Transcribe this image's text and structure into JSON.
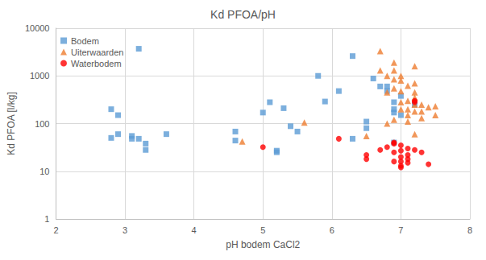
{
  "chart_data": {
    "type": "scatter",
    "title": "Kd PFOA/pH",
    "x_label": "pH bodem CaCl2",
    "y_label": "Kd PFOA [l/kg]",
    "xlim": [
      2,
      8
    ],
    "xticks": [
      2,
      3,
      4,
      5,
      6,
      7,
      8
    ],
    "ylim": [
      1,
      10000
    ],
    "yticks": [
      1,
      10,
      100,
      1000,
      10000
    ],
    "log": "y",
    "grid": true,
    "legend": "upper left",
    "series": [
      {
        "name": "Bodem",
        "color": "#5b9bd5",
        "marker": "square",
        "x": [
          2.8,
          2.8,
          2.9,
          2.9,
          3.1,
          3.1,
          3.2,
          3.2,
          3.3,
          3.3,
          3.6,
          4.6,
          4.6,
          5.0,
          5.1,
          5.2,
          5.2,
          5.3,
          5.4,
          5.5,
          5.8,
          5.9,
          6.1,
          6.3,
          6.3,
          6.5,
          6.5,
          6.6,
          6.7,
          6.8,
          6.8,
          6.9,
          6.9,
          6.9,
          7.0,
          7.0,
          6.9,
          7.2
        ],
        "values": [
          200,
          50,
          150,
          60,
          55,
          48,
          3700,
          48,
          38,
          28,
          60,
          68,
          44,
          170,
          280,
          27,
          25,
          210,
          88,
          68,
          1000,
          290,
          480,
          2600,
          48,
          110,
          80,
          880,
          600,
          600,
          480,
          280,
          200,
          170,
          380,
          150,
          40,
          250
        ]
      },
      {
        "name": "Uiterwaarden",
        "color": "#ed7d31",
        "marker": "triangle",
        "x": [
          4.7,
          5.6,
          6.5,
          6.7,
          6.7,
          6.8,
          6.8,
          6.8,
          6.9,
          6.9,
          6.9,
          6.9,
          6.9,
          7.0,
          7.0,
          7.0,
          7.0,
          7.0,
          7.1,
          7.1,
          7.1,
          7.1,
          7.2,
          7.2,
          7.2,
          7.2,
          7.2,
          7.2,
          7.2,
          7.3,
          7.3,
          7.3,
          7.4,
          7.5,
          7.5,
          7.1
        ],
        "values": [
          42,
          105,
          55,
          3300,
          1300,
          1000,
          450,
          100,
          1900,
          1300,
          850,
          550,
          120,
          1000,
          800,
          480,
          280,
          200,
          620,
          300,
          200,
          150,
          1600,
          700,
          450,
          350,
          250,
          180,
          60,
          250,
          180,
          130,
          220,
          230,
          150,
          110
        ]
      },
      {
        "name": "Waterbodem",
        "color": "#ff0000",
        "marker": "circle",
        "x": [
          5.0,
          6.1,
          6.5,
          6.5,
          6.7,
          6.8,
          6.9,
          6.9,
          6.9,
          7.0,
          7.0,
          7.0,
          7.0,
          7.0,
          7.0,
          7.1,
          7.1,
          7.1,
          7.1,
          7.2,
          7.2,
          7.2,
          7.3,
          7.4,
          6.9
        ],
        "values": [
          32,
          48,
          22,
          18,
          28,
          32,
          38,
          25,
          16,
          35,
          27,
          20,
          16,
          13,
          12,
          30,
          22,
          18,
          15,
          28,
          300,
          280,
          25,
          14,
          40
        ]
      }
    ]
  }
}
